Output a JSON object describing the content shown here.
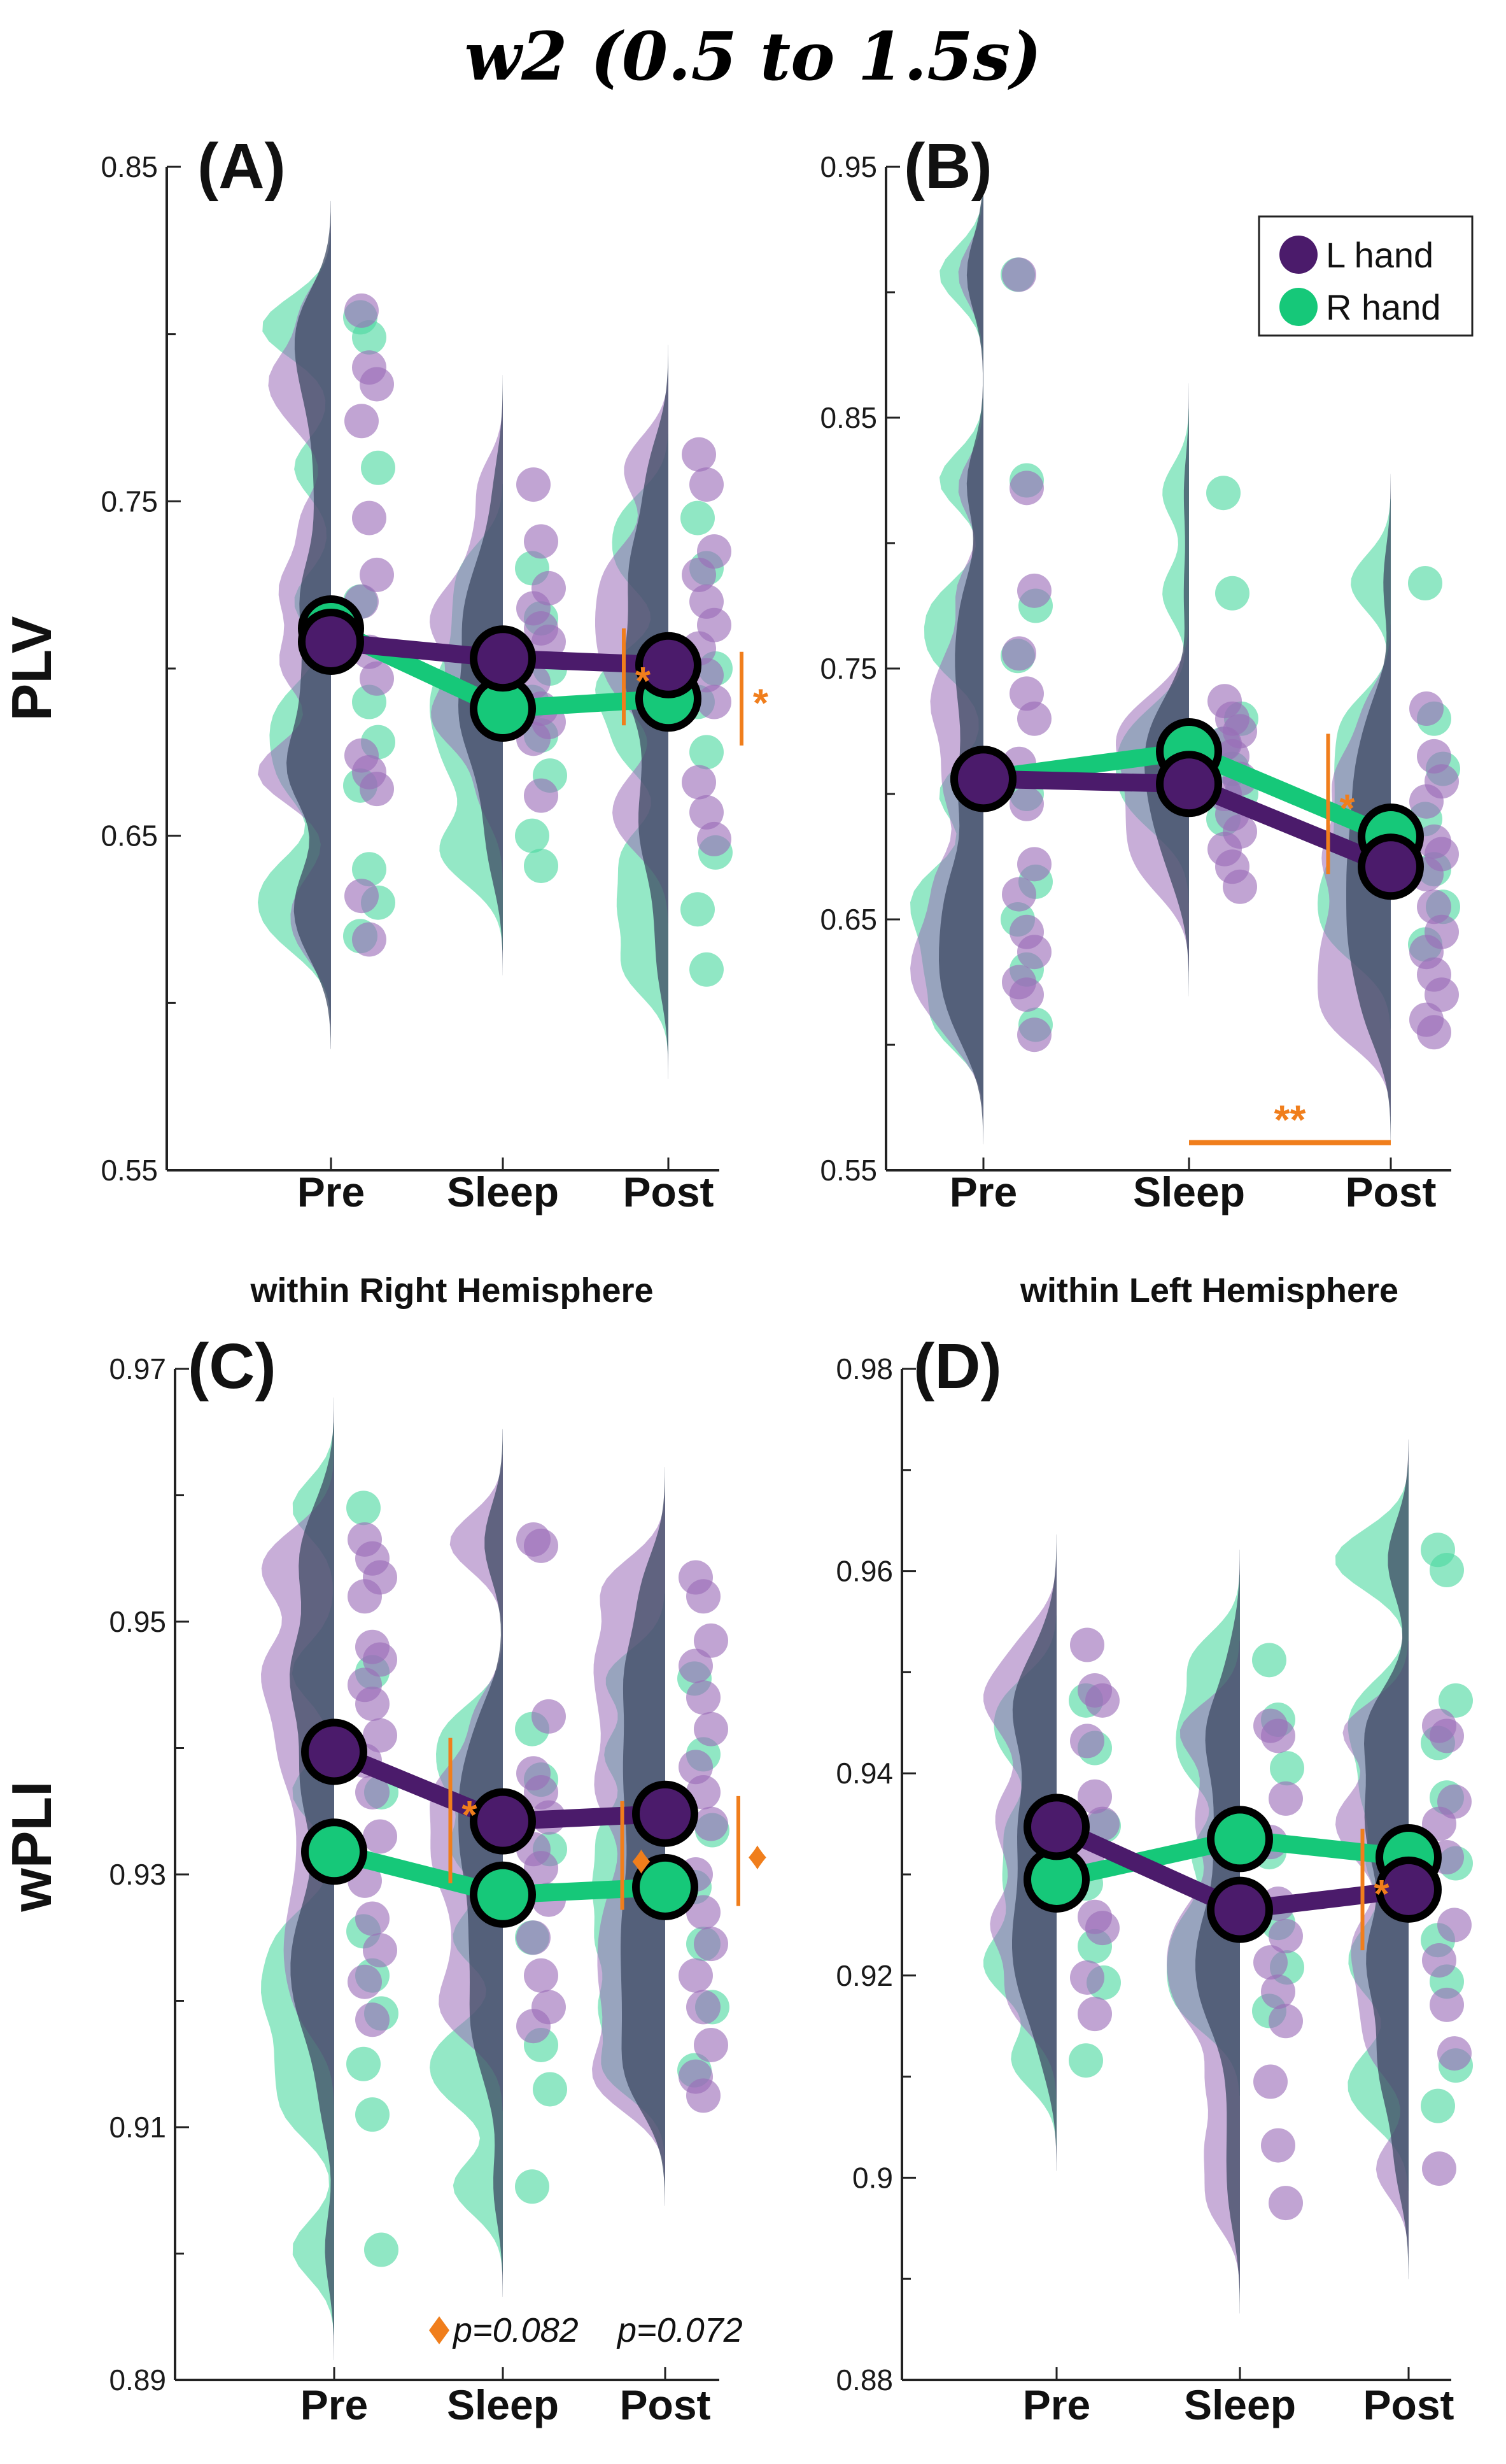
{
  "title": "w2 (0.5 to 1.5s)",
  "colors": {
    "l_hand": "#4B1B6B",
    "l_hand_fill": "#9B6CB8",
    "r_hand": "#16C879",
    "r_hand_fill": "#4CD8A0",
    "half_violin": "#3E4A63",
    "sig": "#F07E1C",
    "axis": "#222222"
  },
  "subtitles": {
    "right": "within Right Hemisphere",
    "left": "within Left Hemisphere"
  },
  "footnote": {
    "diamond_label": "p=0.082",
    "second_label": "p=0.072"
  },
  "chart_data": [
    {
      "panel": "(A)",
      "type": "line",
      "ylabel": "PLV",
      "categories": [
        "Pre",
        "Sleep",
        "Post"
      ],
      "ylim": [
        0.55,
        0.85
      ],
      "yticks": [
        "0.55",
        "0.65",
        "0.75",
        "0.85"
      ],
      "series": [
        {
          "name": "L hand",
          "values": [
            0.708,
            0.703,
            0.701
          ]
        },
        {
          "name": "R hand",
          "values": [
            0.712,
            0.688,
            0.691
          ]
        }
      ],
      "points": {
        "L hand": [
          [
            0.807,
            0.79,
            0.785,
            0.774,
            0.745,
            0.728,
            0.72,
            0.705,
            0.697,
            0.674,
            0.669,
            0.664,
            0.632,
            0.619
          ],
          [
            0.755,
            0.738,
            0.724,
            0.718,
            0.712,
            0.708,
            0.696,
            0.688,
            0.684,
            0.679,
            0.662
          ],
          [
            0.764,
            0.755,
            0.735,
            0.728,
            0.72,
            0.713,
            0.706,
            0.698,
            0.69,
            0.666,
            0.657,
            0.649
          ]
        ],
        "R hand": [
          [
            0.805,
            0.799,
            0.76,
            0.72,
            0.69,
            0.678,
            0.665,
            0.64,
            0.63,
            0.62
          ],
          [
            0.73,
            0.715,
            0.7,
            0.69,
            0.68,
            0.668,
            0.65,
            0.641
          ],
          [
            0.745,
            0.73,
            0.7,
            0.69,
            0.675,
            0.645,
            0.628,
            0.61
          ]
        ]
      },
      "annotations": [
        {
          "text": "*",
          "x_between": [
            1,
            2
          ],
          "y_range": [
            0.683,
            0.712
          ]
        },
        {
          "text": "*",
          "x_after": 2,
          "y_range": [
            0.677,
            0.705
          ]
        }
      ]
    },
    {
      "panel": "(B)",
      "type": "line",
      "ylabel": "",
      "categories": [
        "Pre",
        "Sleep",
        "Post"
      ],
      "ylim": [
        0.55,
        0.95
      ],
      "yticks": [
        "0.55",
        "0.65",
        "0.75",
        "0.85",
        "0.95"
      ],
      "legend": [
        "L hand",
        "R hand"
      ],
      "series": [
        {
          "name": "L hand",
          "values": [
            0.706,
            0.704,
            0.671
          ]
        },
        {
          "name": "R hand",
          "values": [
            0.706,
            0.717,
            0.683
          ]
        }
      ],
      "points": {
        "L hand": [
          [
            0.907,
            0.822,
            0.781,
            0.756,
            0.74,
            0.73,
            0.712,
            0.696,
            0.672,
            0.66,
            0.645,
            0.637,
            0.625,
            0.62,
            0.604
          ],
          [
            0.737,
            0.73,
            0.725,
            0.72,
            0.715,
            0.706,
            0.7,
            0.692,
            0.685,
            0.678,
            0.671,
            0.663
          ],
          [
            0.734,
            0.715,
            0.705,
            0.697,
            0.681,
            0.676,
            0.668,
            0.655,
            0.645,
            0.637,
            0.628,
            0.62,
            0.61,
            0.605
          ]
        ],
        "R hand": [
          [
            0.907,
            0.825,
            0.775,
            0.755,
            0.7,
            0.665,
            0.65,
            0.63,
            0.608
          ],
          [
            0.82,
            0.78,
            0.73,
            0.72,
            0.71,
            0.7,
            0.69
          ],
          [
            0.784,
            0.73,
            0.71,
            0.69,
            0.67,
            0.655,
            0.64
          ]
        ]
      },
      "annotations": [
        {
          "text": "*",
          "x_between": [
            1,
            2
          ],
          "y_range": [
            0.668,
            0.724
          ]
        },
        {
          "text": "**",
          "bracket_x": [
            1,
            2
          ],
          "y": 0.561
        }
      ]
    },
    {
      "panel": "(C)",
      "type": "line",
      "ylabel": "wPLI",
      "categories": [
        "Pre",
        "Sleep",
        "Post"
      ],
      "ylim": [
        0.89,
        0.97
      ],
      "yticks": [
        "0.89",
        "0.91",
        "0.93",
        "0.95",
        "0.97"
      ],
      "series": [
        {
          "name": "L hand",
          "values": [
            0.9397,
            0.9342,
            0.9348
          ]
        },
        {
          "name": "R hand",
          "values": [
            0.9318,
            0.9284,
            0.929
          ]
        }
      ],
      "points": {
        "L hand": [
          [
            0.9565,
            0.955,
            0.9535,
            0.952,
            0.948,
            0.947,
            0.945,
            0.9435,
            0.941,
            0.939,
            0.9365,
            0.933,
            0.9295,
            0.9265,
            0.924,
            0.9215,
            0.9185
          ],
          [
            0.9565,
            0.956,
            0.9425,
            0.938,
            0.9365,
            0.9345,
            0.932,
            0.9305,
            0.928,
            0.925,
            0.922,
            0.9195,
            0.918
          ],
          [
            0.9535,
            0.952,
            0.9485,
            0.9465,
            0.944,
            0.9415,
            0.9385,
            0.9365,
            0.934,
            0.93,
            0.927,
            0.9245,
            0.922,
            0.9195,
            0.9165,
            0.914,
            0.9125
          ]
        ],
        "R hand": [
          [
            0.959,
            0.946,
            0.9365,
            0.9255,
            0.922,
            0.919,
            0.915,
            0.911,
            0.9003
          ],
          [
            0.9415,
            0.9375,
            0.932,
            0.925,
            0.9165,
            0.913,
            0.9053
          ],
          [
            0.9455,
            0.9395,
            0.9335,
            0.929,
            0.9245,
            0.9195,
            0.9145
          ]
        ]
      },
      "annotations": [
        {
          "text": "*",
          "x_between": [
            0,
            1
          ],
          "y_range": [
            0.9293,
            0.9408
          ]
        },
        {
          "text": "♦",
          "x_between": [
            1,
            2
          ],
          "y_range": [
            0.9272,
            0.9358
          ]
        },
        {
          "text": "♦",
          "x_after": 2,
          "y_range": [
            0.9275,
            0.9362
          ]
        }
      ]
    },
    {
      "panel": "(D)",
      "type": "line",
      "ylabel": "",
      "categories": [
        "Pre",
        "Sleep",
        "Post"
      ],
      "ylim": [
        0.88,
        0.98
      ],
      "yticks": [
        "0.88",
        "0.9",
        "0.92",
        "0.94",
        "0.96",
        "0.98"
      ],
      "series": [
        {
          "name": "L hand",
          "values": [
            0.9347,
            0.9265,
            0.9285
          ]
        },
        {
          "name": "R hand",
          "values": [
            0.9295,
            0.9335,
            0.9317
          ]
        }
      ],
      "points": {
        "L hand": [
          [
            0.9527,
            0.9482,
            0.9472,
            0.9432,
            0.9377,
            0.935,
            0.9312,
            0.9258,
            0.9247,
            0.9198,
            0.9162
          ],
          [
            0.9447,
            0.9437,
            0.9375,
            0.9332,
            0.9271,
            0.9239,
            0.9213,
            0.9184,
            0.9155,
            0.9095,
            0.9032,
            0.8975
          ],
          [
            0.9447,
            0.9437,
            0.9372,
            0.935,
            0.9317,
            0.925,
            0.9215,
            0.9171,
            0.9123,
            0.9009
          ]
        ],
        "R hand": [
          [
            0.9472,
            0.9425,
            0.9348,
            0.9291,
            0.9229,
            0.9193,
            0.9116
          ],
          [
            0.9512,
            0.9453,
            0.9405,
            0.9322,
            0.9252,
            0.9208,
            0.9165
          ],
          [
            0.9621,
            0.9601,
            0.9472,
            0.943,
            0.9376,
            0.9311,
            0.9235,
            0.9194,
            0.9111,
            0.9071
          ]
        ]
      },
      "annotations": [
        {
          "text": "*",
          "x_between": [
            1,
            2
          ],
          "y_range": [
            0.9225,
            0.9345
          ]
        }
      ]
    }
  ]
}
